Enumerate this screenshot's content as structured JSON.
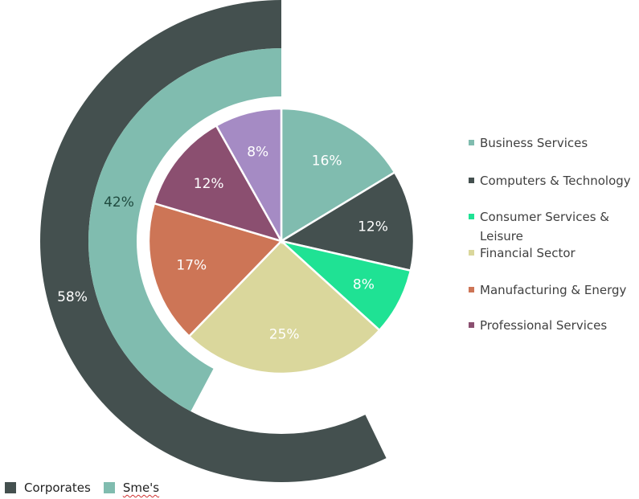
{
  "colors": {
    "corporates": "#44504f",
    "smes": "#80bcaf",
    "business_services": "#80bcaf",
    "computers_technology": "#44504f",
    "consumer_services": "#1fe294",
    "financial_sector": "#dad79c",
    "manufacturing_energy": "#cd7556",
    "professional_services": "#8b4f70",
    "other": "#a58bc4"
  },
  "chart_data": [
    {
      "type": "donut",
      "name": "Outer ring",
      "series": [
        {
          "name": "Corporates",
          "value": 58,
          "label": "58%",
          "color_key": "corporates"
        },
        {
          "name": "Sme's",
          "value": 42,
          "label": "42%",
          "color_key": "smes"
        }
      ]
    },
    {
      "type": "pie",
      "name": "Inner pie",
      "slices": [
        {
          "name": "Business Services",
          "value": 16,
          "label": "16%",
          "color_key": "business_services"
        },
        {
          "name": "Computers & Technology",
          "value": 12,
          "label": "12%",
          "color_key": "computers_technology"
        },
        {
          "name": "Consumer Services & Leisure",
          "value": 8,
          "label": "8%",
          "color_key": "consumer_services"
        },
        {
          "name": "Financial Sector",
          "value": 25,
          "label": "25%",
          "color_key": "financial_sector"
        },
        {
          "name": "Manufacturing & Energy",
          "value": 17,
          "label": "17%",
          "color_key": "manufacturing_energy"
        },
        {
          "name": "Professional Services",
          "value": 12,
          "label": "12%",
          "color_key": "professional_services"
        },
        {
          "name": "",
          "value": 8,
          "label": "8%",
          "color_key": "other"
        }
      ]
    }
  ],
  "legend": {
    "items": [
      {
        "label": "Business Services",
        "color_key": "business_services"
      },
      {
        "label": "Computers & Technology",
        "color_key": "computers_technology"
      },
      {
        "label": "Consumer Services & Leisure",
        "color_key": "consumer_services"
      },
      {
        "label": "Financial Sector",
        "color_key": "financial_sector"
      },
      {
        "label": "Manufacturing & Energy",
        "color_key": "manufacturing_energy"
      },
      {
        "label": "Professional Services",
        "color_key": "professional_services"
      }
    ]
  },
  "bottom_legend": {
    "items": [
      {
        "label": "Corporates",
        "color_key": "corporates"
      },
      {
        "label": "Sme's",
        "color_key": "smes"
      }
    ]
  }
}
